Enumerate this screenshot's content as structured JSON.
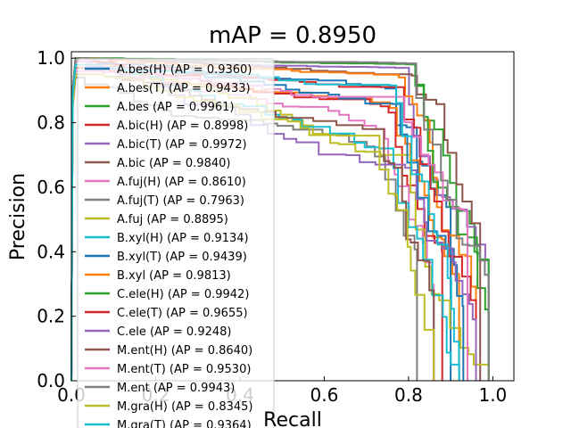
{
  "chart_data": {
    "type": "line",
    "title": "mAP = 0.8950",
    "xlabel": "Recall",
    "ylabel": "Precision",
    "xlim": [
      0,
      1.05
    ],
    "ylim": [
      0,
      1.02
    ],
    "xticks": [
      "0.0",
      "0.2",
      "0.4",
      "0.6",
      "0.8",
      "1.0"
    ],
    "yticks": [
      "0.0",
      "0.2",
      "0.4",
      "0.6",
      "0.8",
      "1.0"
    ],
    "grid": false,
    "legend_position": "upper-left",
    "series": [
      {
        "name": "A.bes(H) (AP = 0.9360)",
        "color": "#1f77b4",
        "drop": 0.9,
        "start": 0.98,
        "end": 0.88
      },
      {
        "name": "A.bes(T) (AP = 0.9433)",
        "color": "#ff7f0e",
        "drop": 0.92,
        "start": 0.99,
        "end": 0.84
      },
      {
        "name": "A.bes (AP = 0.9961)",
        "color": "#2ca02c",
        "drop": 0.99,
        "start": 1.0,
        "end": 0.98
      },
      {
        "name": "A.bic(H) (AP = 0.8998)",
        "color": "#d62728",
        "drop": 0.88,
        "start": 0.97,
        "end": 0.82
      },
      {
        "name": "A.bic(T) (AP = 0.9972)",
        "color": "#9467bd",
        "drop": 0.99,
        "start": 1.0,
        "end": 0.97
      },
      {
        "name": "A.bic (AP = 0.9840)",
        "color": "#8c564b",
        "drop": 0.97,
        "start": 1.0,
        "end": 0.95
      },
      {
        "name": "A.fuj(H) (AP = 0.8610)",
        "color": "#e377c2",
        "drop": 0.86,
        "start": 0.96,
        "end": 0.78
      },
      {
        "name": "A.fuj(T) (AP = 0.7963)",
        "color": "#7f7f7f",
        "drop": 0.82,
        "start": 0.94,
        "end": 0.7
      },
      {
        "name": "A.fuj (AP = 0.8895)",
        "color": "#bcbd22",
        "drop": 0.99,
        "start": 0.99,
        "end": 0.7
      },
      {
        "name": "B.xyl(H) (AP = 0.9134)",
        "color": "#17becf",
        "drop": 0.92,
        "start": 0.98,
        "end": 0.72
      },
      {
        "name": "B.xyl(T) (AP = 0.9439)",
        "color": "#1f77b4",
        "drop": 0.93,
        "start": 0.99,
        "end": 0.85
      },
      {
        "name": "B.xyl (AP = 0.9813)",
        "color": "#ff7f0e",
        "drop": 0.96,
        "start": 1.0,
        "end": 0.94
      },
      {
        "name": "C.ele(H) (AP = 0.9942)",
        "color": "#2ca02c",
        "drop": 0.99,
        "start": 1.0,
        "end": 0.98
      },
      {
        "name": "C.ele(T) (AP = 0.9655)",
        "color": "#d62728",
        "drop": 0.96,
        "start": 0.99,
        "end": 0.91
      },
      {
        "name": "C.ele (AP = 0.9248)",
        "color": "#9467bd",
        "drop": 0.96,
        "start": 0.99,
        "end": 0.67
      },
      {
        "name": "M.ent(H) (AP = 0.8640)",
        "color": "#8c564b",
        "drop": 0.86,
        "start": 0.95,
        "end": 0.78
      },
      {
        "name": "M.ent(T) (AP = 0.9530)",
        "color": "#e377c2",
        "drop": 0.94,
        "start": 0.99,
        "end": 0.88
      },
      {
        "name": "M.ent (AP = 0.9943)",
        "color": "#7f7f7f",
        "drop": 0.99,
        "start": 1.0,
        "end": 0.98
      },
      {
        "name": "M.gra(H) (AP = 0.8345)",
        "color": "#bcbd22",
        "drop": 0.86,
        "start": 0.95,
        "end": 0.76
      },
      {
        "name": "M.gra(T) (AP = 0.9364)",
        "color": "#17becf",
        "drop": 0.92,
        "start": 0.98,
        "end": 0.88
      }
    ]
  }
}
